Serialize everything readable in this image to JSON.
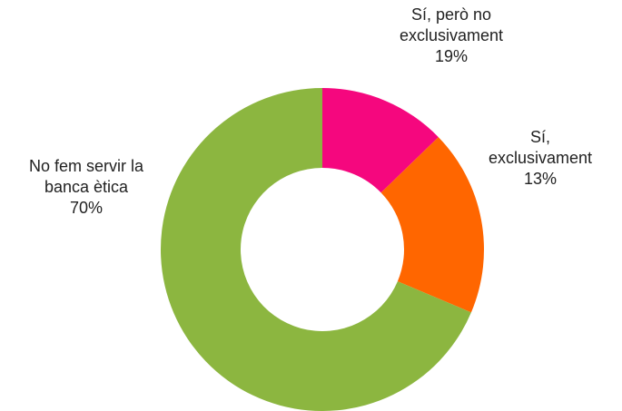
{
  "chart_data": {
    "type": "donut",
    "categories": [
      "Sí, exclusivament",
      "Sí, però no exclusivament",
      "No fem servir la banca ètica"
    ],
    "values": [
      13,
      19,
      70
    ],
    "value_labels": [
      "13%",
      "19%",
      "70%"
    ],
    "colors": [
      "#f5077e",
      "#ff6600",
      "#8cb640"
    ]
  }
}
